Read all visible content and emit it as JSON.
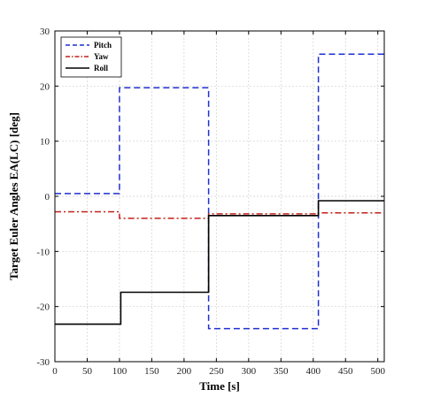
{
  "chart_data": {
    "type": "line",
    "title": "",
    "xlabel": "Time [s]",
    "ylabel": "Target Euler Angles EA(LC) [deg]",
    "xlim": [
      0,
      510
    ],
    "ylim": [
      -30,
      30
    ],
    "xticks": [
      0,
      50,
      100,
      150,
      200,
      250,
      300,
      350,
      400,
      450,
      500
    ],
    "yticks": [
      -30,
      -20,
      -10,
      0,
      10,
      20,
      30
    ],
    "grid": true,
    "legend_position": "top-left",
    "series": [
      {
        "name": "Pitch",
        "color": "#1f2fd0",
        "style": "dashed",
        "step": true,
        "x": [
          0,
          100,
          100,
          238,
          238,
          408,
          408,
          510
        ],
        "y": [
          0.5,
          0.5,
          19.7,
          19.7,
          -24.0,
          -24.0,
          25.8,
          25.8
        ]
      },
      {
        "name": "Yaw",
        "color": "#c0201a",
        "style": "dashdot",
        "step": true,
        "x": [
          0,
          100,
          100,
          238,
          238,
          408,
          408,
          510
        ],
        "y": [
          -2.8,
          -2.8,
          -4.0,
          -4.0,
          -3.2,
          -3.2,
          -3.0,
          -3.0
        ]
      },
      {
        "name": "Roll",
        "color": "#000000",
        "style": "solid",
        "step": true,
        "x": [
          0,
          102,
          102,
          238,
          238,
          408,
          408,
          510
        ],
        "y": [
          -23.2,
          -23.2,
          -17.4,
          -17.4,
          -3.5,
          -3.5,
          -0.8,
          -0.8
        ]
      }
    ]
  }
}
